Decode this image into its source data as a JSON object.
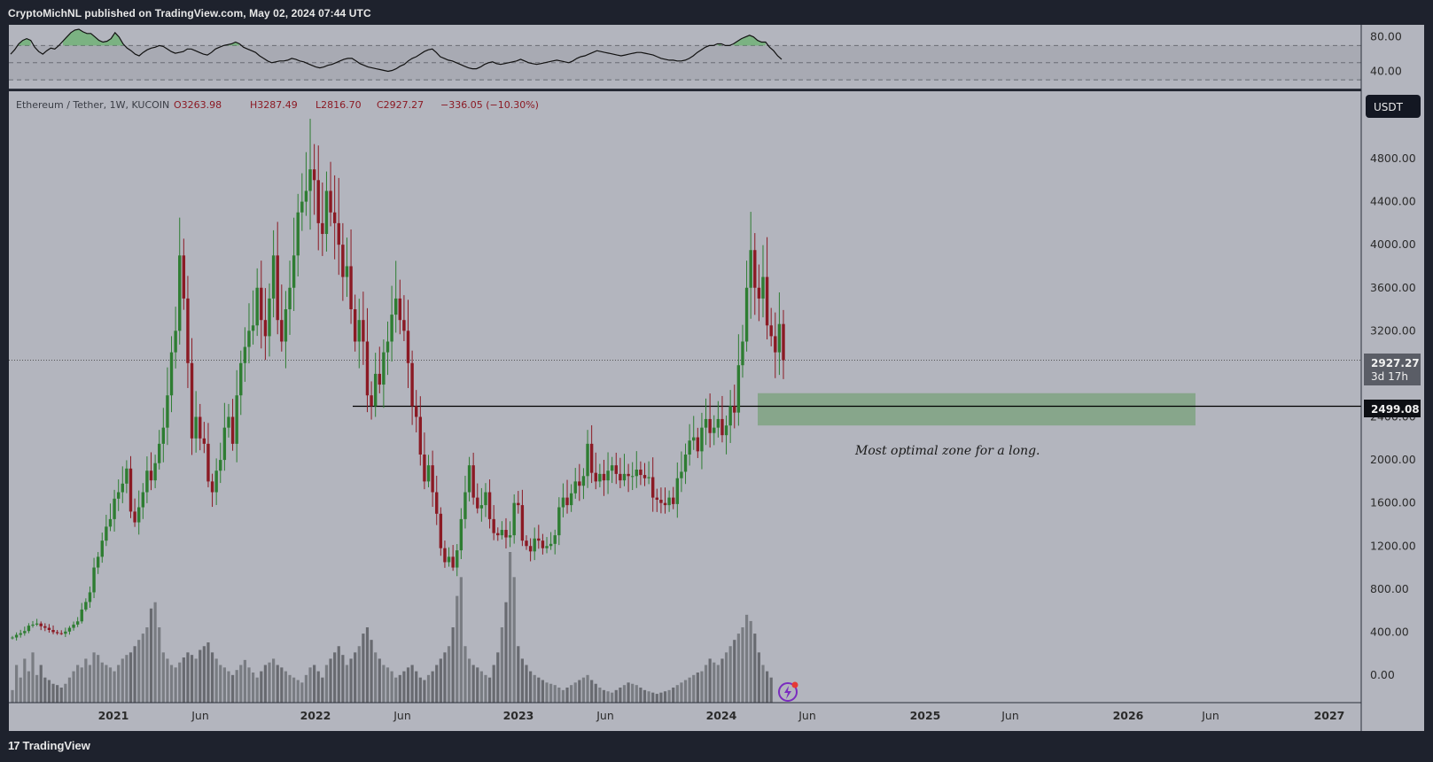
{
  "header": {
    "published_line": "CryptoMichNL published on TradingView.com, May 02, 2024 07:44 UTC"
  },
  "footer": {
    "brand_mark": "17",
    "brand_name": "TradingView"
  },
  "legend": {
    "symbol": "Ethereum / Tether, 1W, KUCOIN",
    "open": "O3263.98",
    "high": "H3287.49",
    "low": "L2816.70",
    "close": "C2927.27",
    "change": "−336.05 (−10.30%)"
  },
  "currency_badge": "USDT",
  "last_price": {
    "value": "2927.27",
    "countdown": "3d 17h"
  },
  "level_price": "2499.08",
  "annotation": "Most optimal zone for a long.",
  "colors": {
    "background": "#b3b5be",
    "up_candle": "#2e7d32",
    "down_candle": "#8b1a24",
    "zone": "#7fa382",
    "volume": "#5c5f66"
  },
  "chart_data": [
    {
      "type": "line",
      "panel": "oscillator",
      "y_ticks": [
        "80.00",
        "40.00"
      ],
      "ylim": [
        24,
        90
      ],
      "bands": [
        30,
        50,
        70
      ],
      "series": [
        {
          "values": [
            60,
            65,
            72,
            76,
            78,
            76,
            68,
            63,
            60,
            64,
            67,
            66,
            70,
            75,
            80,
            85,
            88,
            89,
            86,
            84,
            84,
            80,
            76,
            74,
            75,
            78,
            85,
            80,
            72,
            67,
            64,
            60,
            58,
            62,
            65,
            67,
            68,
            70,
            69,
            66,
            63,
            61,
            62,
            63,
            66,
            66,
            64,
            62,
            60,
            59,
            62,
            66,
            68,
            70,
            71,
            72,
            74,
            72,
            68,
            66,
            64,
            62,
            58,
            55,
            52,
            50,
            51,
            52,
            52,
            53,
            55,
            54,
            52,
            51,
            49,
            47,
            45,
            44,
            45,
            47,
            48,
            50,
            52,
            54,
            55,
            55,
            52,
            49,
            47,
            45,
            44,
            43,
            42,
            41,
            40,
            41,
            43,
            46,
            48,
            52,
            55,
            57,
            60,
            63,
            65,
            66,
            62,
            57,
            55,
            53,
            52,
            50,
            48,
            46,
            44,
            43,
            43,
            45,
            48,
            50,
            51,
            49,
            48,
            49,
            50,
            51,
            52,
            54,
            52,
            50,
            49,
            48,
            49,
            50,
            51,
            52,
            53,
            52,
            51,
            50,
            52,
            55,
            57,
            58,
            60,
            62,
            64,
            63,
            62,
            61,
            60,
            59,
            58,
            59,
            60,
            61,
            62,
            62,
            61,
            60,
            59,
            57,
            55,
            54,
            53,
            53,
            52,
            52,
            53,
            55,
            58,
            62,
            65,
            68,
            70,
            70,
            72,
            72,
            70,
            70,
            72,
            75,
            78,
            80,
            82,
            80,
            76,
            74,
            74,
            68,
            64,
            58,
            54
          ]
        }
      ]
    },
    {
      "type": "candlestick",
      "panel": "price",
      "symbol": "Ethereum / Tether, 1W, KUCOIN",
      "x_tick_labels": [
        "2021",
        "Jun",
        "2022",
        "Jun",
        "2023",
        "Jun",
        "2024",
        "Jun",
        "2025",
        "Jun",
        "2026",
        "Jun",
        "2027"
      ],
      "y_tick_labels": [
        "4800.00",
        "4400.00",
        "4000.00",
        "3600.00",
        "3200.00",
        "2400.00",
        "2000.00",
        "1600.00",
        "1200.00",
        "800.00",
        "400.00",
        "0.00"
      ],
      "ylim": [
        -200,
        5200
      ],
      "series_note": "weekly closes (USDT), 2020-09-28 to 2024-04-29",
      "x": [
        "2020-09-28",
        "2024-04-29"
      ],
      "closes": [
        350,
        375,
        390,
        410,
        460,
        470,
        480,
        455,
        440,
        420,
        400,
        390,
        385,
        405,
        440,
        470,
        500,
        610,
        680,
        770,
        1000,
        1100,
        1250,
        1380,
        1450,
        1640,
        1700,
        1780,
        1920,
        1520,
        1420,
        1560,
        1700,
        1900,
        1810,
        1970,
        2150,
        2300,
        2600,
        3000,
        3200,
        3900,
        3500,
        2900,
        2200,
        2400,
        2200,
        2150,
        1800,
        1700,
        1900,
        2000,
        2300,
        2400,
        2150,
        2600,
        2900,
        3050,
        3200,
        3250,
        3600,
        3300,
        3150,
        3500,
        3900,
        3300,
        3100,
        3400,
        3600,
        3900,
        4300,
        4400,
        4500,
        4700,
        4600,
        4200,
        4100,
        4500,
        4300,
        4200,
        4000,
        3700,
        3800,
        3400,
        3100,
        3300,
        3100,
        2600,
        2500,
        2800,
        2700,
        3000,
        3100,
        3350,
        3500,
        3300,
        3200,
        2900,
        2500,
        2400,
        2050,
        1800,
        1950,
        1700,
        1500,
        1180,
        1050,
        1100,
        1000,
        1160,
        1450,
        1700,
        1950,
        1650,
        1550,
        1580,
        1700,
        1450,
        1320,
        1300,
        1350,
        1280,
        1300,
        1600,
        1580,
        1250,
        1200,
        1150,
        1270,
        1250,
        1180,
        1200,
        1220,
        1300,
        1560,
        1650,
        1580,
        1690,
        1800,
        1760,
        1850,
        2150,
        1880,
        1800,
        1870,
        1810,
        1900,
        1950,
        1870,
        1810,
        1870,
        1850,
        1850,
        1910,
        1860,
        1830,
        1840,
        1650,
        1630,
        1600,
        1580,
        1650,
        1590,
        1830,
        1890,
        2050,
        2180,
        2210,
        2080,
        2300,
        2380,
        2250,
        2300,
        2380,
        2230,
        2320,
        2500,
        2440,
        2880,
        3100,
        3600,
        3950,
        3600,
        3500,
        3700,
        3250,
        3150,
        3000,
        3263,
        2927
      ]
    },
    {
      "type": "bar",
      "panel": "volume",
      "values": [
        10,
        30,
        20,
        35,
        25,
        40,
        22,
        30,
        20,
        18,
        15,
        14,
        12,
        15,
        20,
        25,
        30,
        28,
        35,
        30,
        40,
        38,
        32,
        30,
        28,
        25,
        30,
        35,
        38,
        40,
        45,
        50,
        55,
        60,
        75,
        80,
        60,
        40,
        35,
        30,
        28,
        32,
        36,
        40,
        38,
        35,
        42,
        45,
        48,
        40,
        35,
        30,
        28,
        25,
        22,
        26,
        30,
        34,
        28,
        24,
        20,
        25,
        30,
        32,
        35,
        30,
        28,
        25,
        22,
        20,
        18,
        16,
        22,
        28,
        30,
        25,
        20,
        30,
        35,
        40,
        45,
        38,
        30,
        35,
        40,
        45,
        55,
        60,
        50,
        40,
        35,
        30,
        28,
        25,
        20,
        22,
        25,
        28,
        30,
        25,
        20,
        18,
        22,
        25,
        30,
        35,
        40,
        45,
        60,
        85,
        100,
        45,
        35,
        30,
        28,
        25,
        22,
        20,
        30,
        40,
        60,
        80,
        120,
        100,
        45,
        35,
        30,
        25,
        22,
        20,
        18,
        16,
        15,
        14,
        12,
        10,
        12,
        14,
        16,
        18,
        20,
        22,
        18,
        15,
        12,
        10,
        9,
        8,
        10,
        12,
        14,
        16,
        15,
        14,
        12,
        10,
        9,
        8,
        7,
        8,
        9,
        10,
        12,
        14,
        16,
        18,
        20,
        22,
        24,
        25,
        30,
        35,
        32,
        30,
        35,
        40,
        45,
        50,
        55,
        60,
        70,
        65,
        55,
        40,
        30,
        25,
        20
      ]
    }
  ]
}
